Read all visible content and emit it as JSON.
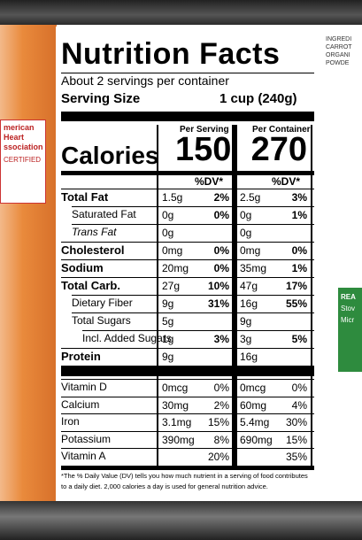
{
  "label": {
    "title": "Nutrition Facts",
    "servings": "About 2 servings per container",
    "serving_size_label": "Serving Size",
    "serving_size": "1 cup (240g)",
    "per_serving": "Per Serving",
    "per_container": "Per Container",
    "calories_label": "Calories",
    "calories_serving": "150",
    "calories_container": "270",
    "dv_header": "%DV*",
    "rows": [
      {
        "name": "Total Fat",
        "s": "1.5g",
        "sdv": "2%",
        "c": "2.5g",
        "cdv": "3%"
      },
      {
        "name": "Saturated Fat",
        "s": "0g",
        "sdv": "0%",
        "c": "0g",
        "cdv": "1%"
      },
      {
        "name": "Trans Fat",
        "s": "0g",
        "c": "0g"
      },
      {
        "name": "Cholesterol",
        "s": "0mg",
        "sdv": "0%",
        "c": "0mg",
        "cdv": "0%"
      },
      {
        "name": "Sodium",
        "s": "20mg",
        "sdv": "0%",
        "c": "35mg",
        "cdv": "1%"
      },
      {
        "name": "Total Carb.",
        "s": "27g",
        "sdv": "10%",
        "c": "47g",
        "cdv": "17%"
      },
      {
        "name": "Dietary Fiber",
        "s": "9g",
        "sdv": "31%",
        "c": "16g",
        "cdv": "55%"
      },
      {
        "name": "Total Sugars",
        "s": "5g",
        "c": "9g"
      },
      {
        "name": "Incl. Added Sugars",
        "s": "1g",
        "sdv": "3%",
        "c": "3g",
        "cdv": "5%"
      },
      {
        "name": "Protein",
        "s": "9g",
        "c": "16g"
      }
    ],
    "vitamins": [
      {
        "name": "Vitamin D",
        "s": "0mcg",
        "sdv": "0%",
        "c": "0mcg",
        "cdv": "0%"
      },
      {
        "name": "Calcium",
        "s": "30mg",
        "sdv": "2%",
        "c": "60mg",
        "cdv": "4%"
      },
      {
        "name": "Iron",
        "s": "3.1mg",
        "sdv": "15%",
        "c": "5.4mg",
        "cdv": "30%"
      },
      {
        "name": "Potassium",
        "s": "390mg",
        "sdv": "8%",
        "c": "690mg",
        "cdv": "15%"
      },
      {
        "name": "Vitamin A",
        "sdv": "20%",
        "cdv": "35%"
      }
    ],
    "footnote": "*The % Daily Value (DV) tells you how much nutrient in a serving of food contributes to a daily diet. 2,000 calories a day is used for general nutrition advice."
  },
  "left_side": {
    "badge": "merican Heart ssociation",
    "certified": "CERTIFIED"
  },
  "right_side": {
    "ingredients": [
      "INGREDI",
      "CARROT",
      "ORGANI",
      "POWDE"
    ],
    "green": [
      "REA",
      "Stov",
      "Micr"
    ]
  }
}
